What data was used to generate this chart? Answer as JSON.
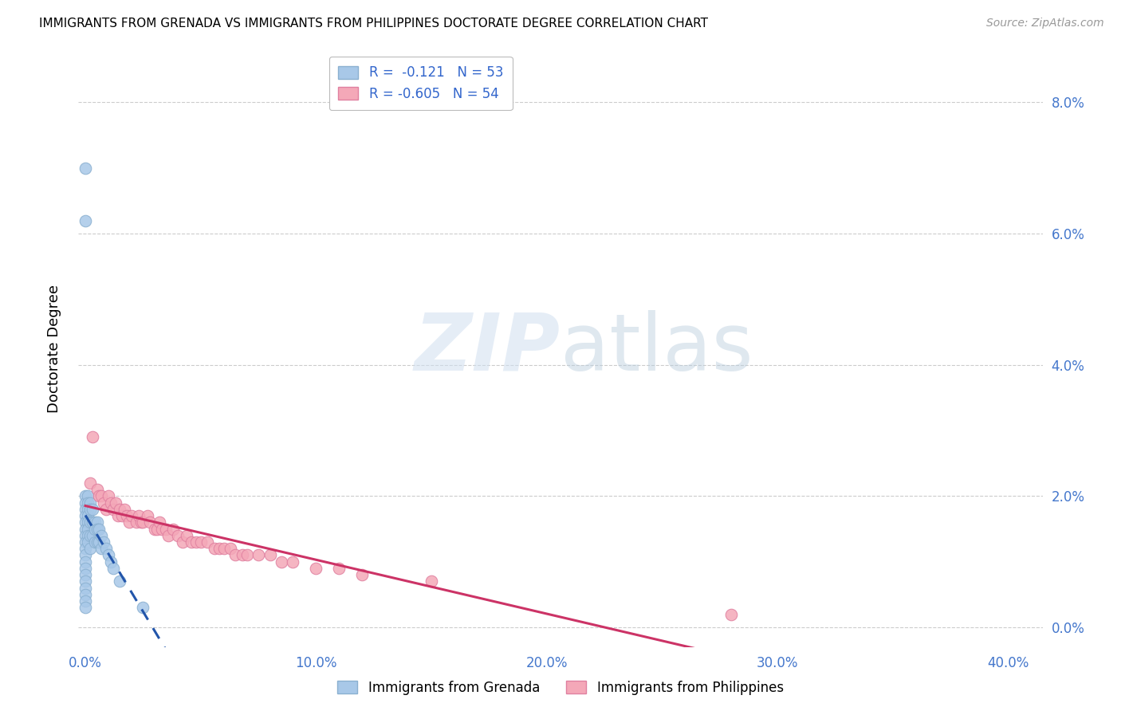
{
  "title": "IMMIGRANTS FROM GRENADA VS IMMIGRANTS FROM PHILIPPINES DOCTORATE DEGREE CORRELATION CHART",
  "source": "Source: ZipAtlas.com",
  "xlabel_ticks": [
    "0.0%",
    "10.0%",
    "20.0%",
    "30.0%",
    "40.0%"
  ],
  "ylabel_ticks": [
    "0.0%",
    "2.0%",
    "4.0%",
    "6.0%",
    "8.0%"
  ],
  "xlabel_values": [
    0.0,
    0.1,
    0.2,
    0.3,
    0.4
  ],
  "ylabel_values": [
    0.0,
    0.02,
    0.04,
    0.06,
    0.08
  ],
  "xlim": [
    -0.003,
    0.415
  ],
  "ylim": [
    -0.003,
    0.088
  ],
  "legend_r_blue": "-0.121",
  "legend_n_blue": "53",
  "legend_r_pink": "-0.605",
  "legend_n_pink": "54",
  "legend_label_blue": "Immigrants from Grenada",
  "legend_label_pink": "Immigrants from Philippines",
  "blue_color": "#a8c8e8",
  "pink_color": "#f4a8b8",
  "trendline_blue_color": "#2255aa",
  "trendline_pink_color": "#cc3366",
  "watermark_zip": "ZIP",
  "watermark_atlas": "atlas",
  "grenada_x": [
    0.0,
    0.0,
    0.0,
    0.0,
    0.0,
    0.0,
    0.0,
    0.0,
    0.0,
    0.0,
    0.0,
    0.0,
    0.0,
    0.0,
    0.0,
    0.0,
    0.0,
    0.0,
    0.0,
    0.0,
    0.001,
    0.001,
    0.001,
    0.001,
    0.001,
    0.001,
    0.001,
    0.001,
    0.002,
    0.002,
    0.002,
    0.002,
    0.002,
    0.003,
    0.003,
    0.003,
    0.004,
    0.004,
    0.004,
    0.005,
    0.005,
    0.005,
    0.006,
    0.006,
    0.007,
    0.007,
    0.008,
    0.009,
    0.01,
    0.011,
    0.012,
    0.015,
    0.025
  ],
  "grenada_y": [
    0.07,
    0.062,
    0.02,
    0.019,
    0.018,
    0.017,
    0.016,
    0.015,
    0.014,
    0.013,
    0.012,
    0.011,
    0.01,
    0.009,
    0.008,
    0.007,
    0.006,
    0.005,
    0.004,
    0.003,
    0.02,
    0.019,
    0.018,
    0.017,
    0.016,
    0.015,
    0.014,
    0.013,
    0.019,
    0.018,
    0.016,
    0.014,
    0.012,
    0.018,
    0.016,
    0.014,
    0.016,
    0.015,
    0.013,
    0.016,
    0.015,
    0.013,
    0.015,
    0.013,
    0.014,
    0.012,
    0.013,
    0.012,
    0.011,
    0.01,
    0.009,
    0.007,
    0.003
  ],
  "philippines_x": [
    0.002,
    0.003,
    0.005,
    0.006,
    0.007,
    0.008,
    0.009,
    0.01,
    0.011,
    0.012,
    0.013,
    0.014,
    0.015,
    0.016,
    0.017,
    0.018,
    0.019,
    0.02,
    0.022,
    0.023,
    0.024,
    0.025,
    0.027,
    0.028,
    0.03,
    0.031,
    0.032,
    0.033,
    0.035,
    0.036,
    0.038,
    0.04,
    0.042,
    0.044,
    0.046,
    0.048,
    0.05,
    0.053,
    0.056,
    0.058,
    0.06,
    0.063,
    0.065,
    0.068,
    0.07,
    0.075,
    0.08,
    0.085,
    0.09,
    0.1,
    0.11,
    0.12,
    0.15,
    0.28
  ],
  "philippines_y": [
    0.022,
    0.029,
    0.021,
    0.02,
    0.02,
    0.019,
    0.018,
    0.02,
    0.019,
    0.018,
    0.019,
    0.017,
    0.018,
    0.017,
    0.018,
    0.017,
    0.016,
    0.017,
    0.016,
    0.017,
    0.016,
    0.016,
    0.017,
    0.016,
    0.015,
    0.015,
    0.016,
    0.015,
    0.015,
    0.014,
    0.015,
    0.014,
    0.013,
    0.014,
    0.013,
    0.013,
    0.013,
    0.013,
    0.012,
    0.012,
    0.012,
    0.012,
    0.011,
    0.011,
    0.011,
    0.011,
    0.011,
    0.01,
    0.01,
    0.009,
    0.009,
    0.008,
    0.007,
    0.002
  ]
}
